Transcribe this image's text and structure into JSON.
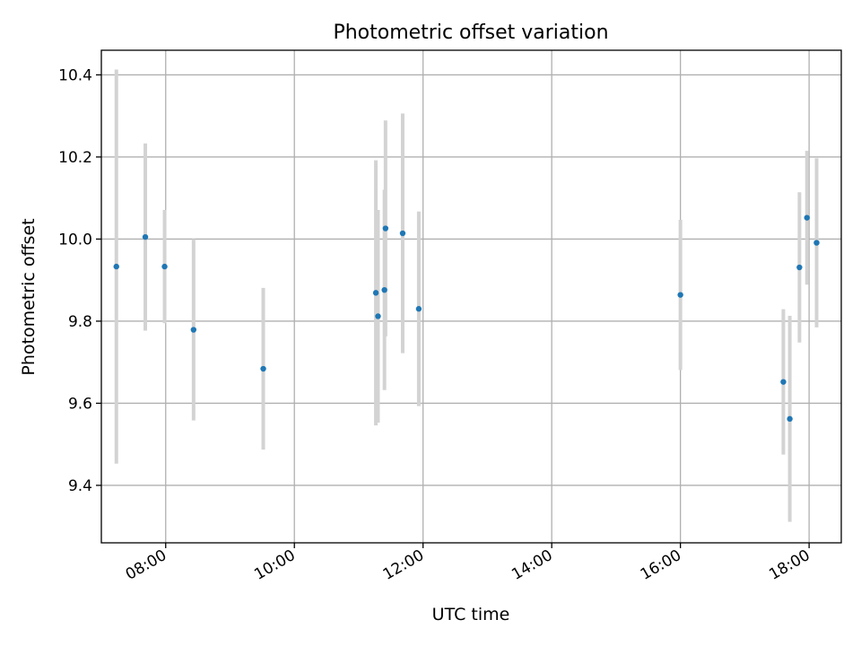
{
  "chart_data": {
    "type": "scatter",
    "title": "Photometric offset variation",
    "xlabel": "UTC time",
    "ylabel": "Photometric offset",
    "x_axis_kind": "time",
    "xlim": [
      "07:00",
      "18:30"
    ],
    "ylim": [
      9.26,
      10.46
    ],
    "xticks": [
      "08:00",
      "10:00",
      "12:00",
      "14:00",
      "16:00",
      "18:00"
    ],
    "yticks": [
      9.4,
      9.6,
      9.8,
      10.0,
      10.2,
      10.4
    ],
    "ytick_labels": [
      "9.4",
      "9.6",
      "9.8",
      "10.0",
      "10.2",
      "10.4"
    ],
    "grid": true,
    "error_bars": true,
    "points": [
      {
        "x": "07:14",
        "y": 9.933,
        "err": 0.48
      },
      {
        "x": "07:41",
        "y": 10.005,
        "err": 0.228
      },
      {
        "x": "07:59",
        "y": 9.933,
        "err": 0.138
      },
      {
        "x": "08:26",
        "y": 9.779,
        "err": 0.221
      },
      {
        "x": "09:31",
        "y": 9.684,
        "err": 0.197
      },
      {
        "x": "11:16",
        "y": 9.869,
        "err": 0.323
      },
      {
        "x": "11:18",
        "y": 9.812,
        "err": 0.259
      },
      {
        "x": "11:24",
        "y": 9.876,
        "err": 0.244
      },
      {
        "x": "11:25",
        "y": 10.026,
        "err": 0.263
      },
      {
        "x": "11:41",
        "y": 10.014,
        "err": 0.292
      },
      {
        "x": "11:56",
        "y": 9.83,
        "err": 0.237
      },
      {
        "x": "16:00",
        "y": 9.864,
        "err": 0.183
      },
      {
        "x": "17:36",
        "y": 9.652,
        "err": 0.177
      },
      {
        "x": "17:42",
        "y": 9.562,
        "err": 0.251
      },
      {
        "x": "17:51",
        "y": 9.931,
        "err": 0.183
      },
      {
        "x": "17:58",
        "y": 10.052,
        "err": 0.163
      },
      {
        "x": "18:07",
        "y": 9.991,
        "err": 0.206
      }
    ],
    "colors": {
      "point": "#1f77b4",
      "error_bar": "#d3d3d3",
      "grid": "#b0b0b0",
      "axes": "#000000"
    }
  }
}
